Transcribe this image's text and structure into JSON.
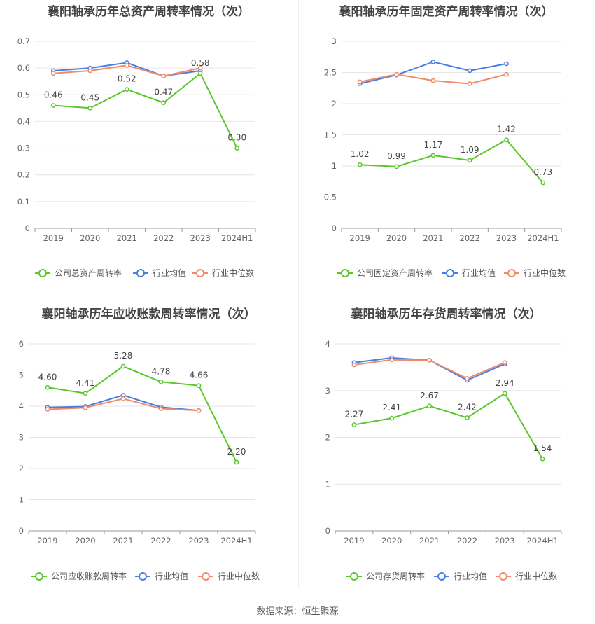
{
  "source": "数据来源：恒生聚源",
  "colors": {
    "company": "#5ac72e",
    "avg": "#4a7fe0",
    "median": "#f08a68"
  },
  "chart_data": [
    {
      "type": "line",
      "title": "襄阳轴承历年总资产周转率情况（次）",
      "categories": [
        "2019",
        "2020",
        "2021",
        "2022",
        "2023",
        "2024H1"
      ],
      "ylim": [
        0,
        0.7
      ],
      "yticks": [
        "0",
        "0.1",
        "0.2",
        "0.3",
        "0.4",
        "0.5",
        "0.6",
        "0.7"
      ],
      "legend_position": "bottom",
      "series": [
        {
          "name": "公司总资产周转率",
          "values": [
            0.46,
            0.45,
            0.52,
            0.47,
            0.58,
            0.3
          ],
          "labels": [
            "0.46",
            "0.45",
            "0.52",
            "0.47",
            "0.58",
            "0.30"
          ]
        },
        {
          "name": "行业均值",
          "values": [
            0.59,
            0.6,
            0.62,
            0.57,
            0.59,
            null
          ]
        },
        {
          "name": "行业中位数",
          "values": [
            0.58,
            0.59,
            0.61,
            0.57,
            0.6,
            null
          ]
        }
      ]
    },
    {
      "type": "line",
      "title": "襄阳轴承历年固定资产周转率情况（次）",
      "categories": [
        "2019",
        "2020",
        "2021",
        "2022",
        "2023",
        "2024H1"
      ],
      "ylim": [
        0,
        3
      ],
      "yticks": [
        "0",
        "0.5",
        "1",
        "1.5",
        "2",
        "2.5",
        "3"
      ],
      "legend_position": "bottom",
      "series": [
        {
          "name": "公司固定资产周转率",
          "values": [
            1.02,
            0.99,
            1.17,
            1.09,
            1.42,
            0.73
          ],
          "labels": [
            "1.02",
            "0.99",
            "1.17",
            "1.09",
            "1.42",
            "0.73"
          ]
        },
        {
          "name": "行业均值",
          "values": [
            2.32,
            2.46,
            2.67,
            2.53,
            2.64,
            null
          ]
        },
        {
          "name": "行业中位数",
          "values": [
            2.35,
            2.47,
            2.37,
            2.32,
            2.47,
            null
          ]
        }
      ]
    },
    {
      "type": "line",
      "title": "襄阳轴承历年应收账款周转率情况（次）",
      "categories": [
        "2019",
        "2020",
        "2021",
        "2022",
        "2023",
        "2024H1"
      ],
      "ylim": [
        0,
        6
      ],
      "yticks": [
        "0",
        "1",
        "2",
        "3",
        "4",
        "5",
        "6"
      ],
      "legend_position": "bottom",
      "series": [
        {
          "name": "公司应收账款周转率",
          "values": [
            4.6,
            4.41,
            5.28,
            4.78,
            4.66,
            2.2
          ],
          "labels": [
            "4.60",
            "4.41",
            "5.28",
            "4.78",
            "4.66",
            "2.20"
          ]
        },
        {
          "name": "行业均值",
          "values": [
            3.96,
            3.99,
            4.35,
            3.97,
            3.86,
            null
          ]
        },
        {
          "name": "行业中位数",
          "values": [
            3.9,
            3.95,
            4.24,
            3.92,
            3.86,
            null
          ]
        }
      ]
    },
    {
      "type": "line",
      "title": "襄阳轴承历年存货周转率情况（次）",
      "categories": [
        "2019",
        "2020",
        "2021",
        "2022",
        "2023",
        "2024H1"
      ],
      "ylim": [
        0,
        4
      ],
      "yticks": [
        "0",
        "1",
        "2",
        "3",
        "4"
      ],
      "legend_position": "bottom",
      "series": [
        {
          "name": "公司存货周转率",
          "values": [
            2.27,
            2.41,
            2.67,
            2.42,
            2.94,
            1.54
          ],
          "labels": [
            "2.27",
            "2.41",
            "2.67",
            "2.42",
            "2.94",
            "1.54"
          ]
        },
        {
          "name": "行业均值",
          "values": [
            3.6,
            3.7,
            3.65,
            3.22,
            3.57,
            null
          ]
        },
        {
          "name": "行业中位数",
          "values": [
            3.55,
            3.66,
            3.65,
            3.26,
            3.6,
            null
          ]
        }
      ]
    }
  ]
}
